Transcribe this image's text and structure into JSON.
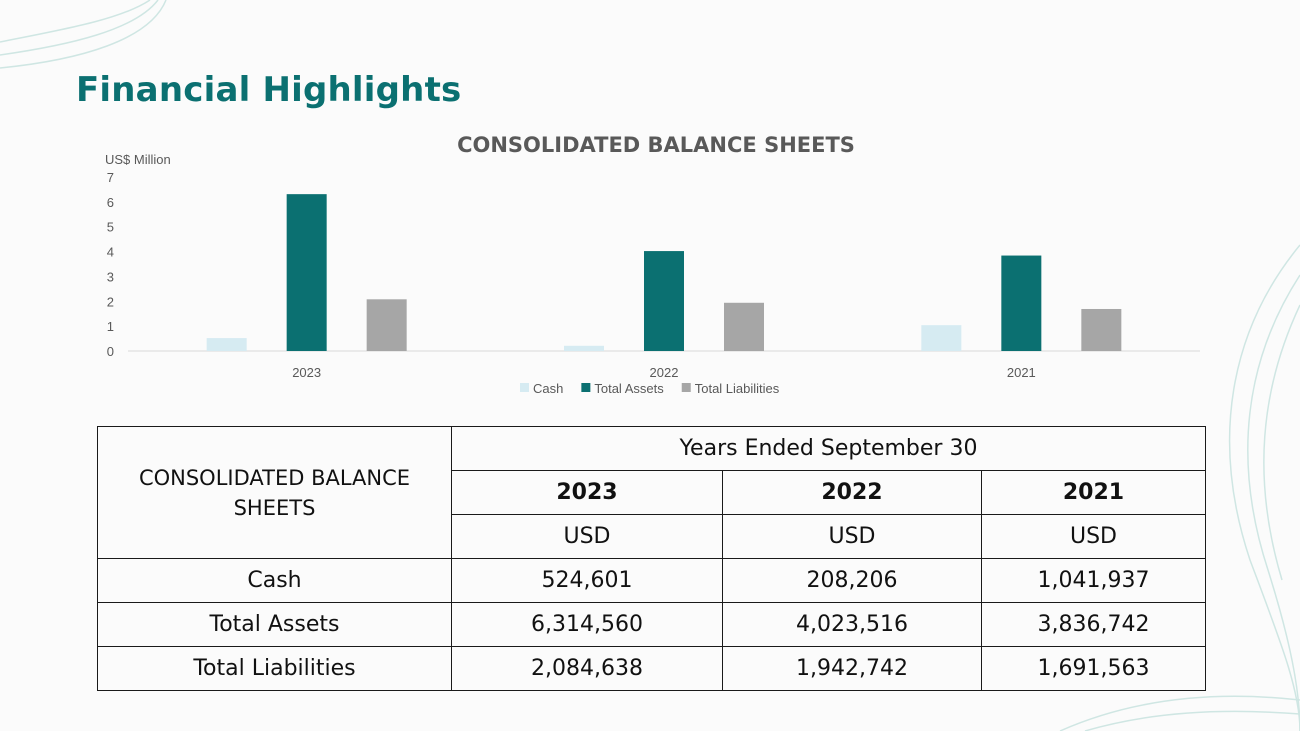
{
  "slide": {
    "title": "Financial Highlights"
  },
  "colors": {
    "title": "#0b7071",
    "cash": "#d6ebf2",
    "total_assets": "#0b7071",
    "total_liabilities": "#a6a6a6",
    "deco_lines": "#cfe6e3"
  },
  "chart_data": {
    "type": "bar",
    "title": "CONSOLIDATED BALANCE SHEETS",
    "ylabel": "US$ Million",
    "xlabel": "",
    "categories": [
      "2023",
      "2022",
      "2021"
    ],
    "series": [
      {
        "name": "Cash",
        "values": [
          0.52,
          0.21,
          1.04
        ]
      },
      {
        "name": "Total Assets",
        "values": [
          6.31,
          4.02,
          3.84
        ]
      },
      {
        "name": "Total Liabilities",
        "values": [
          2.08,
          1.94,
          1.69
        ]
      }
    ],
    "ylim": [
      0,
      7
    ],
    "yticks": [
      "0",
      "1",
      "2",
      "3",
      "4",
      "5",
      "6",
      "7"
    ],
    "grid": false,
    "legend": "bottom"
  },
  "table": {
    "row_header": "CONSOLIDATED BALANCE SHEETS",
    "period_header": "Years Ended September 30",
    "years": [
      "2023",
      "2022",
      "2021"
    ],
    "currencies": [
      "USD",
      "USD",
      "USD"
    ],
    "rows": [
      {
        "label": "Cash",
        "values": [
          "524,601",
          "208,206",
          "1,041,937"
        ]
      },
      {
        "label": "Total Assets",
        "values": [
          "6,314,560",
          "4,023,516",
          "3,836,742"
        ]
      },
      {
        "label": "Total Liabilities",
        "values": [
          "2,084,638",
          "1,942,742",
          "1,691,563"
        ]
      }
    ]
  }
}
